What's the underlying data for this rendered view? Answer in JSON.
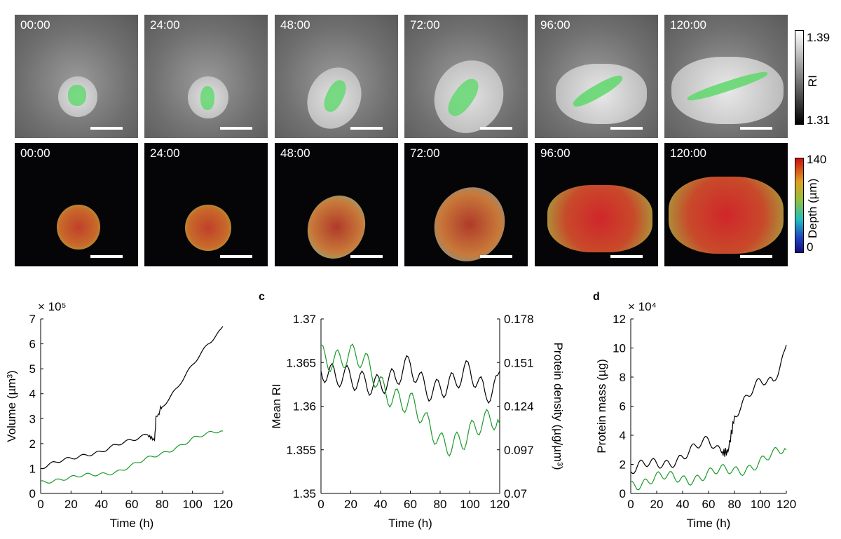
{
  "colors": {
    "black_series": "#000000",
    "green_series": "#1a9a2a",
    "green_overlay": "#5ed86a"
  },
  "icons": {
    "scale_bar": "scale-bar"
  },
  "tiles": {
    "ri_labels": [
      "00:00",
      "24:00",
      "48:00",
      "72:00",
      "96:00",
      "120:00"
    ],
    "depth_labels": [
      "00:00",
      "24:00",
      "48:00",
      "72:00",
      "96:00",
      "120:00"
    ]
  },
  "colorbars": {
    "ri": {
      "max": "1.39",
      "min": "1.31",
      "label": "RI"
    },
    "depth": {
      "max": "140",
      "min": "0",
      "label": "Depth (µm)"
    }
  },
  "chart_data": [
    {
      "type": "line",
      "panel": "",
      "xlabel": "Time (h)",
      "ylabel": "Volume (µm³)",
      "exponent": "× 10⁵",
      "xlim": [
        0,
        120
      ],
      "ylim": [
        0,
        7
      ],
      "xticks": [
        "0",
        "20",
        "40",
        "60",
        "80",
        "100",
        "120"
      ],
      "yticks": [
        "0",
        "1",
        "2",
        "3",
        "4",
        "5",
        "6",
        "7"
      ],
      "series": [
        {
          "color": "#000000",
          "x": [
            0,
            10,
            20,
            30,
            40,
            50,
            60,
            70,
            75,
            76,
            80,
            90,
            100,
            110,
            120
          ],
          "values": [
            1.0,
            1.2,
            1.4,
            1.6,
            1.7,
            1.9,
            2.1,
            2.4,
            2.2,
            3.0,
            3.5,
            4.2,
            5.1,
            6.0,
            6.7
          ]
        },
        {
          "color": "#1a9a2a",
          "x": [
            0,
            10,
            20,
            30,
            40,
            50,
            60,
            70,
            80,
            90,
            100,
            110,
            120
          ],
          "values": [
            0.5,
            0.55,
            0.6,
            0.7,
            0.8,
            0.9,
            1.1,
            1.35,
            1.6,
            1.9,
            2.2,
            2.35,
            2.5
          ]
        }
      ]
    },
    {
      "type": "line",
      "panel": "c",
      "xlabel": "Time (h)",
      "ylabel": "Mean RI",
      "ylabel_right": "Protein density (µg/µm³)",
      "xlim": [
        0,
        120
      ],
      "ylim": [
        1.35,
        1.37
      ],
      "ylim_right": [
        0.07,
        0.178
      ],
      "xticks": [
        "0",
        "20",
        "40",
        "60",
        "80",
        "100",
        "120"
      ],
      "yticks": [
        "1.35",
        "1.355",
        "1.36",
        "1.365",
        "1.37"
      ],
      "yticks_right": [
        "0.07",
        "0.097",
        "0.124",
        "0.151",
        "0.178"
      ],
      "series": [
        {
          "color": "#000000",
          "x": [
            0,
            10,
            20,
            30,
            40,
            50,
            60,
            70,
            80,
            90,
            100,
            110,
            120
          ],
          "values": [
            1.364,
            1.362,
            1.363,
            1.364,
            1.363,
            1.362,
            1.364,
            1.363,
            1.363,
            1.362,
            1.363,
            1.362,
            1.364
          ]
        },
        {
          "color": "#1a9a2a",
          "x": [
            0,
            10,
            20,
            30,
            40,
            50,
            60,
            70,
            80,
            90,
            100,
            110,
            120
          ],
          "values": [
            1.367,
            1.366,
            1.365,
            1.364,
            1.363,
            1.362,
            1.36,
            1.357,
            1.356,
            1.357,
            1.357,
            1.357,
            1.358
          ]
        }
      ]
    },
    {
      "type": "line",
      "panel": "d",
      "xlabel": "Time (h)",
      "ylabel": "Protein mass (µg)",
      "exponent": "× 10⁴",
      "xlim": [
        0,
        120
      ],
      "ylim": [
        0,
        12
      ],
      "xticks": [
        "0",
        "20",
        "40",
        "60",
        "80",
        "100",
        "120"
      ],
      "yticks": [
        "0",
        "2",
        "4",
        "6",
        "8",
        "10",
        "12"
      ],
      "series": [
        {
          "color": "#000000",
          "x": [
            0,
            10,
            20,
            30,
            40,
            50,
            60,
            70,
            75,
            80,
            90,
            100,
            110,
            120
          ],
          "values": [
            1.5,
            1.8,
            2.0,
            2.3,
            2.6,
            3.0,
            3.5,
            3.0,
            3.2,
            5.5,
            6.5,
            7.5,
            7.8,
            10.2
          ]
        },
        {
          "color": "#1a9a2a",
          "x": [
            0,
            10,
            20,
            30,
            40,
            50,
            60,
            70,
            80,
            90,
            100,
            110,
            120
          ],
          "values": [
            0.8,
            0.85,
            0.95,
            1.0,
            1.1,
            1.2,
            1.3,
            1.4,
            1.6,
            1.9,
            2.2,
            2.5,
            3.0
          ]
        }
      ]
    }
  ]
}
